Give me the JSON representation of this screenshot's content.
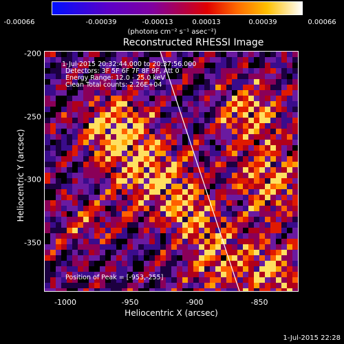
{
  "colorbar": {
    "ticks": [
      "-0.00066",
      "-0.00039",
      "-0.00013",
      "0.00013",
      "0.00039",
      "0.00066"
    ],
    "units": "(photons cm⁻² s⁻¹ asec⁻²)"
  },
  "plot": {
    "title": "Reconstructed RHESSI Image",
    "info": [
      "1-Jul-2015 20:32:44.000 to 20:37:56.000",
      "Detectors: 3F 5F 6F 7F 8F 9F, Att 0",
      "Energy Range: 12.0 - 25.0 keV",
      "Clean     Total counts: 2.26E+04"
    ],
    "peak_label": "Position of Peak = [-953,-255]",
    "xlabel": "Heliocentric X (arcsec)",
    "ylabel": "Heliocentric Y (arcsec)",
    "xticks": [
      "-1000",
      "-950",
      "-900",
      "-850"
    ],
    "yticks": [
      "-200",
      "-250",
      "-300",
      "-350"
    ]
  },
  "stamp": "1-Jul-2015 22:28"
}
